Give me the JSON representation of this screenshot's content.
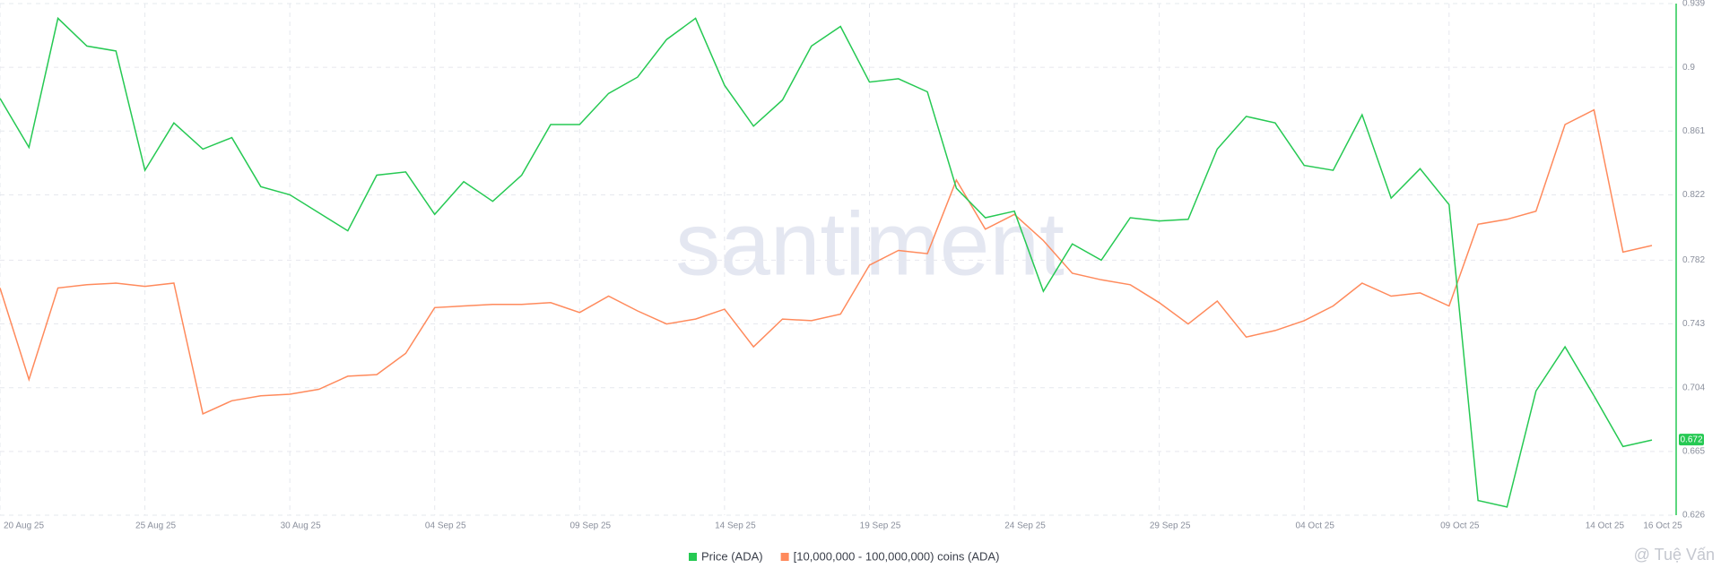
{
  "chart_data": {
    "type": "line",
    "categories": [
      "20 Aug 25",
      null,
      null,
      null,
      null,
      "25 Aug 25",
      null,
      null,
      null,
      null,
      "30 Aug 25",
      null,
      null,
      null,
      null,
      "04 Sep 25",
      null,
      null,
      null,
      null,
      "09 Sep 25",
      null,
      null,
      null,
      null,
      "14 Sep 25",
      null,
      null,
      null,
      null,
      "19 Sep 25",
      null,
      null,
      null,
      null,
      "24 Sep 25",
      null,
      null,
      null,
      null,
      "29 Sep 25",
      null,
      null,
      null,
      null,
      "04 Oct 25",
      null,
      null,
      null,
      null,
      "09 Oct 25",
      null,
      null,
      null,
      null,
      "14 Oct 25",
      null,
      "16 Oct 25"
    ],
    "series": [
      {
        "name": "Price (ADA)",
        "color": "#26c953",
        "values": [
          0.881,
          0.851,
          0.93,
          0.913,
          0.91,
          0.837,
          0.866,
          0.85,
          0.857,
          0.827,
          0.822,
          0.811,
          0.8,
          0.834,
          0.836,
          0.81,
          0.83,
          0.818,
          0.834,
          0.865,
          0.865,
          0.884,
          0.894,
          0.917,
          0.93,
          0.889,
          0.864,
          0.88,
          0.913,
          0.925,
          0.891,
          0.893,
          0.885,
          0.826,
          0.808,
          0.812,
          0.763,
          0.792,
          0.782,
          0.808,
          0.806,
          0.807,
          0.85,
          0.87,
          0.866,
          0.84,
          0.837,
          0.871,
          0.82,
          0.838,
          0.816,
          0.635,
          0.631,
          0.702,
          0.729,
          0.699,
          0.668,
          0.672
        ]
      },
      {
        "name": "[10,000,000 - 100,000,000) coins (ADA)",
        "color": "#ff8a5c",
        "values": [
          0.765,
          0.709,
          0.765,
          0.767,
          0.768,
          0.766,
          0.768,
          0.688,
          0.696,
          0.699,
          0.7,
          0.703,
          0.711,
          0.712,
          0.725,
          0.753,
          0.754,
          0.755,
          0.755,
          0.756,
          0.75,
          0.76,
          0.751,
          0.743,
          0.746,
          0.752,
          0.729,
          0.746,
          0.745,
          0.749,
          0.779,
          0.788,
          0.786,
          0.831,
          0.801,
          0.81,
          0.794,
          0.774,
          0.77,
          0.767,
          0.756,
          0.743,
          0.757,
          0.735,
          0.739,
          0.745,
          0.754,
          0.768,
          0.76,
          0.762,
          0.754,
          0.804,
          0.807,
          0.812,
          0.865,
          0.874,
          0.787,
          0.791
        ]
      }
    ],
    "ylim": [
      0.626,
      0.939
    ],
    "yticks": [
      0.939,
      0.9,
      0.861,
      0.822,
      0.782,
      0.743,
      0.704,
      0.665,
      0.626
    ],
    "grid": true,
    "watermark": "santiment",
    "credit": "@ Tuệ Vấn"
  }
}
